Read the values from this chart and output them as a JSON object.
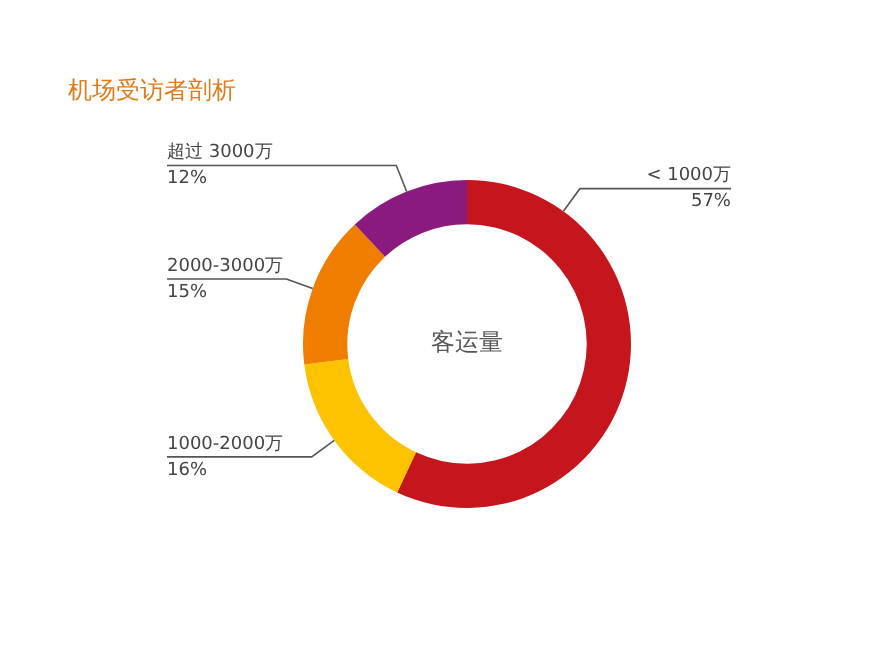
{
  "chart_data": {
    "type": "donut",
    "title": "机场受访者剖析",
    "categories": [
      "< 1000万",
      "1000-2000万",
      "2000-3000万",
      "超过 3000万"
    ],
    "values": [
      57,
      16,
      15,
      12
    ],
    "colors": [
      "#c4161c",
      "#fdc300",
      "#ef7d00",
      "#8b1a7e"
    ],
    "value_labels": [
      "57%",
      "16%",
      "15%",
      "12%"
    ],
    "legend": false,
    "annotations": [
      "客运量"
    ]
  }
}
